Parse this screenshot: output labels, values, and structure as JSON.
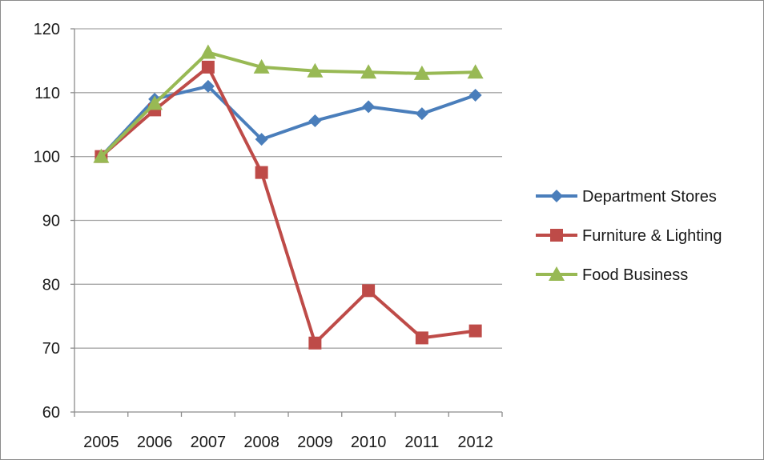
{
  "chart_data": {
    "type": "line",
    "title": "",
    "xlabel": "",
    "ylabel": "",
    "categories": [
      "2005",
      "2006",
      "2007",
      "2008",
      "2009",
      "2010",
      "2011",
      "2012"
    ],
    "ylim": [
      60,
      120
    ],
    "yticks": [
      60,
      70,
      80,
      90,
      100,
      110,
      120
    ],
    "grid": true,
    "legend_position": "right",
    "series": [
      {
        "name": "Department Stores",
        "color": "#4a7ebb",
        "marker": "diamond",
        "values": [
          100,
          109,
          111,
          102.7,
          105.6,
          107.8,
          106.7,
          109.6
        ]
      },
      {
        "name": "Furniture & Lighting",
        "color": "#be4b48",
        "marker": "square",
        "values": [
          100,
          107.3,
          114,
          97.5,
          70.8,
          79,
          71.6,
          72.7
        ]
      },
      {
        "name": "Food Business",
        "color": "#98b954",
        "marker": "triangle",
        "values": [
          100,
          108.3,
          116.3,
          114,
          113.4,
          113.2,
          113,
          113.2
        ]
      }
    ]
  }
}
